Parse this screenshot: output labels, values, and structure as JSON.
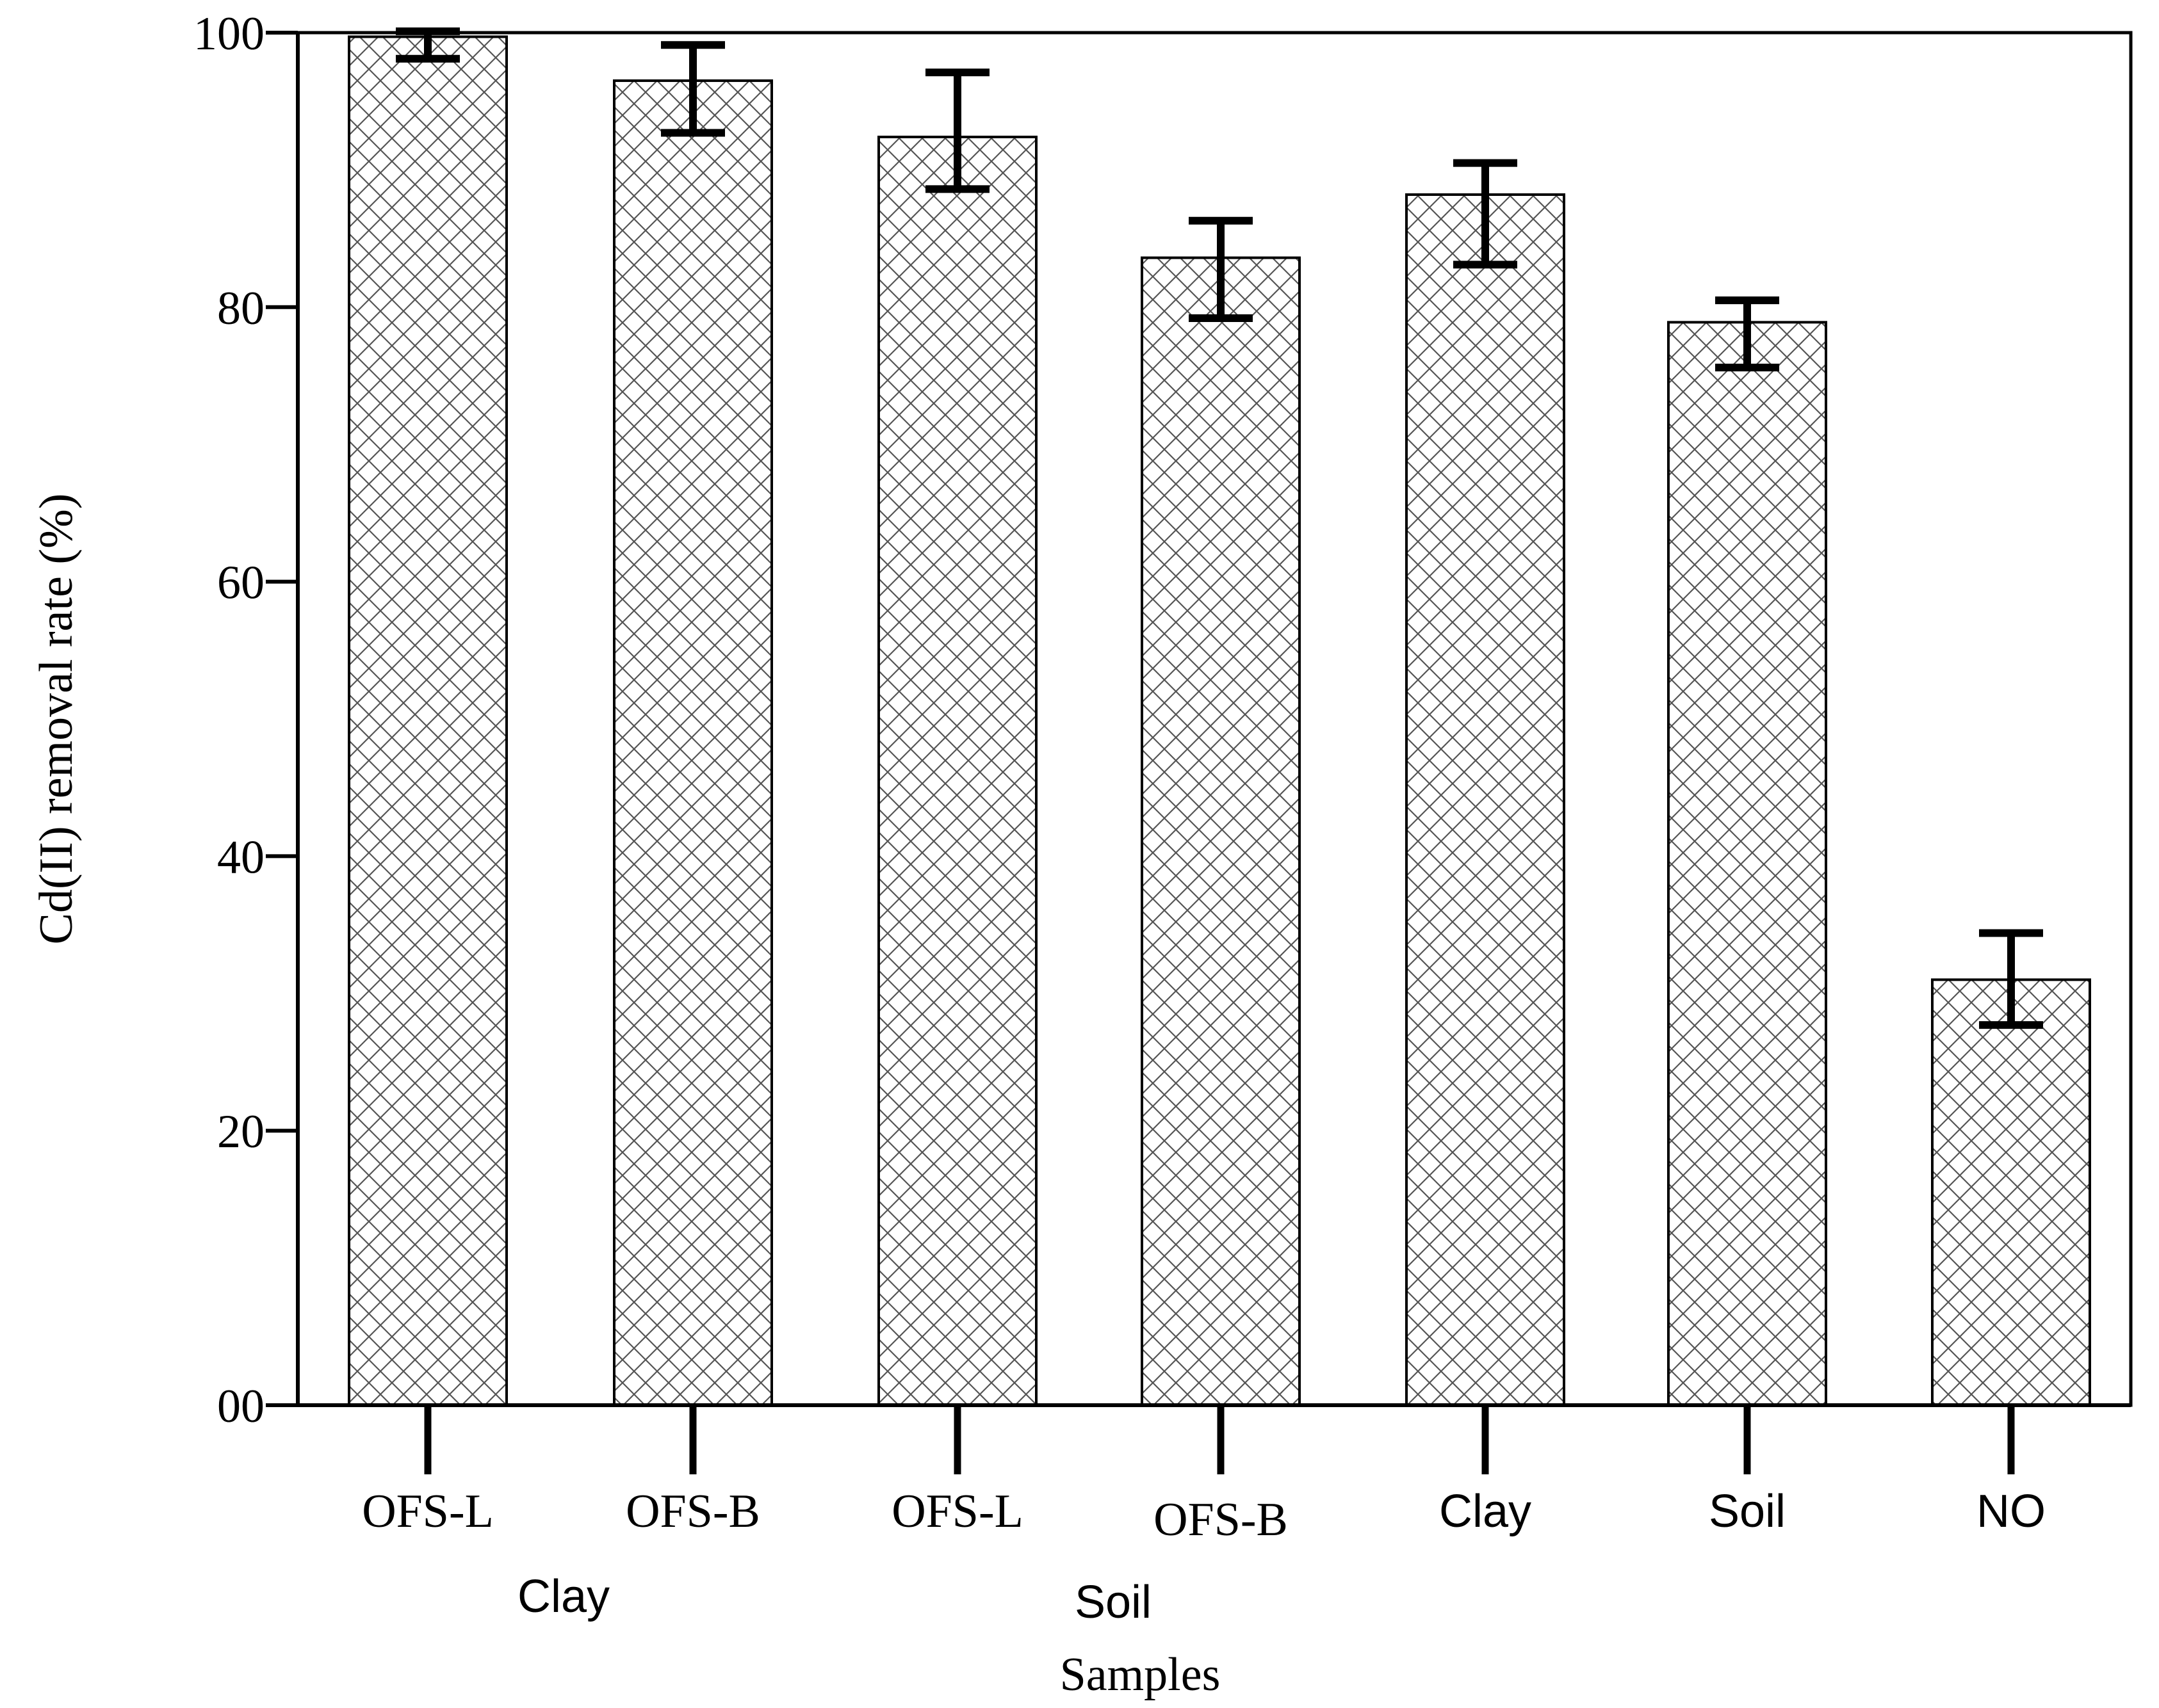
{
  "chart_data": {
    "type": "bar",
    "title": "",
    "xlabel": "Samples",
    "ylabel": "Cd(II) removal rate (%)",
    "ylim": [
      0,
      100
    ],
    "yticks": [
      0,
      20,
      40,
      60,
      80,
      100
    ],
    "ytick_labels": [
      "00",
      "20",
      "40",
      "60",
      "80",
      "100"
    ],
    "grid": false,
    "legend": "none",
    "categories": [
      "OFS-L",
      "OFS-B",
      "OFS-L",
      "OFS-B",
      "Clay",
      "Soil",
      "NO"
    ],
    "values": [
      99.7,
      96.5,
      92.4,
      83.6,
      88.2,
      78.9,
      31.0
    ],
    "error_low": [
      98.1,
      92.7,
      88.6,
      79.2,
      83.1,
      75.6,
      27.7
    ],
    "error_high": [
      100.1,
      99.1,
      97.1,
      86.3,
      90.5,
      80.5,
      34.4
    ],
    "groups": [
      {
        "label": "Clay",
        "members": [
          0,
          1
        ]
      },
      {
        "label": "Soil",
        "members": [
          2,
          3
        ]
      }
    ],
    "fill_pattern": "crosshatch",
    "colors": {
      "bar_fill": "#ffffff",
      "bar_hatch": "#555555",
      "bar_edge": "#000000",
      "axis": "#000000",
      "text": "#000000"
    }
  }
}
